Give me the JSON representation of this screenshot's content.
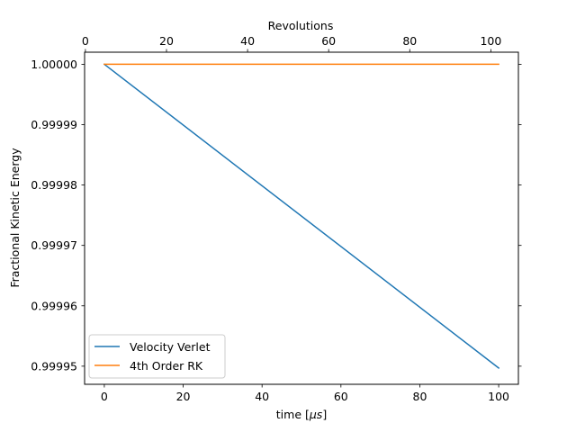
{
  "chart_data": {
    "type": "line",
    "xlabel": "time [",
    "xlabel_unit": "μs",
    "xlabel_end": "]",
    "ylabel": "Fractional Kinetic Energy",
    "top_xlabel": "Revolutions",
    "xlim": [
      -5,
      105
    ],
    "ylim": [
      0.999947,
      1.000002
    ],
    "top_xlim": [
      -0.2,
      106.8
    ],
    "x_ticks": [
      0,
      20,
      40,
      60,
      80,
      100
    ],
    "top_x_ticks": [
      0,
      20,
      40,
      60,
      80,
      100
    ],
    "y_ticks": [
      1.0,
      0.99999,
      0.99998,
      0.99997,
      0.99996,
      0.99995
    ],
    "x_tick_labels": [
      "0",
      "20",
      "40",
      "60",
      "80",
      "100"
    ],
    "top_x_tick_labels": [
      "0",
      "20",
      "40",
      "60",
      "80",
      "100"
    ],
    "y_tick_labels": [
      "1.00000",
      "0.99999",
      "0.99998",
      "0.99997",
      "0.99996",
      "0.99995"
    ],
    "grid": false,
    "legend_position": "lower-left",
    "series": [
      {
        "name": "Velocity Verlet",
        "color": "#1f77b4",
        "x": [
          0,
          100
        ],
        "y": [
          1.0,
          0.9999497
        ]
      },
      {
        "name": "4th Order RK",
        "color": "#ff7f0e",
        "x": [
          0,
          100
        ],
        "y": [
          1.0,
          1.0
        ]
      }
    ]
  }
}
